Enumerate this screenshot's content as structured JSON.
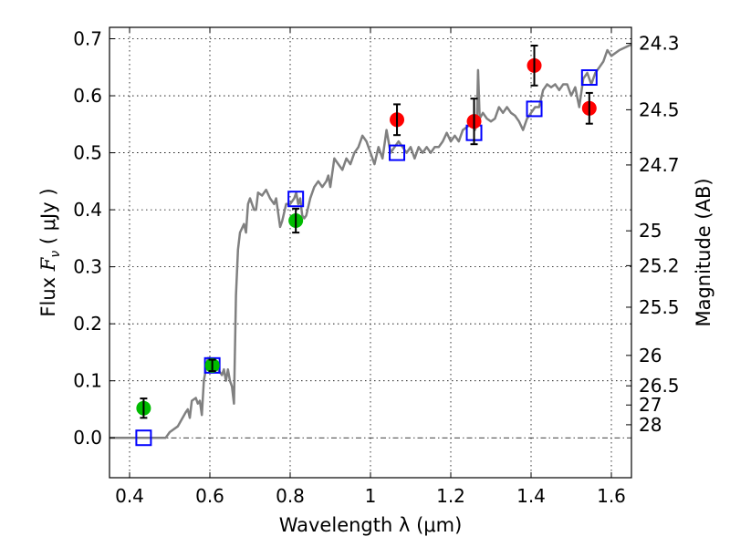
{
  "chart_data": {
    "type": "scatter",
    "xlabel": "Wavelength  λ (μm)",
    "ylabel": "Flux  Fν  ( μJy )",
    "ylabel_parts": {
      "pre": "Flux  ",
      "var": "F",
      "sub": "ν",
      "post": "  ( μJy )"
    },
    "y2label": "Magnitude (AB)",
    "xlim": [
      0.35,
      1.65
    ],
    "ylim": [
      -0.07,
      0.72
    ],
    "grid": true,
    "xticks": [
      0.4,
      0.6,
      0.8,
      1.0,
      1.2,
      1.4,
      1.6
    ],
    "xtick_labels": [
      "0.4",
      "0.6",
      "0.8",
      "1",
      "1.2",
      "1.4",
      "1.6"
    ],
    "yticks": [
      0.0,
      0.1,
      0.2,
      0.3,
      0.4,
      0.5,
      0.6,
      0.7
    ],
    "ytick_labels": [
      "0.0",
      "0.1",
      "0.2",
      "0.3",
      "0.4",
      "0.5",
      "0.6",
      "0.7"
    ],
    "y2ticks": [
      24.3,
      24.5,
      24.7,
      25,
      25.2,
      25.5,
      26,
      26.5,
      27,
      28
    ],
    "y2tick_labels": [
      "24.3",
      "24.5",
      "24.7",
      "25",
      "25.2",
      "25.5",
      "26",
      "26.5",
      "27",
      "28"
    ],
    "colors": {
      "spectrum": "#808080",
      "green": "#00bb00",
      "red": "#ff0000",
      "model": "#0000ff",
      "zero": "#000000"
    },
    "series": [
      {
        "name": "spectrum",
        "kind": "line",
        "x": [
          0.35,
          0.49,
          0.5,
          0.52,
          0.54,
          0.545,
          0.55,
          0.555,
          0.565,
          0.57,
          0.575,
          0.58,
          0.585,
          0.595,
          0.6,
          0.605,
          0.62,
          0.63,
          0.635,
          0.64,
          0.645,
          0.65,
          0.655,
          0.66,
          0.665,
          0.67,
          0.675,
          0.685,
          0.69,
          0.695,
          0.7,
          0.71,
          0.715,
          0.72,
          0.73,
          0.74,
          0.75,
          0.76,
          0.765,
          0.775,
          0.78,
          0.79,
          0.8,
          0.81,
          0.815,
          0.82,
          0.825,
          0.83,
          0.835,
          0.84,
          0.85,
          0.86,
          0.87,
          0.88,
          0.89,
          0.895,
          0.9,
          0.91,
          0.92,
          0.93,
          0.94,
          0.95,
          0.96,
          0.97,
          0.98,
          0.99,
          1.0,
          1.01,
          1.02,
          1.03,
          1.04,
          1.05,
          1.06,
          1.07,
          1.08,
          1.09,
          1.1,
          1.11,
          1.12,
          1.13,
          1.14,
          1.15,
          1.16,
          1.17,
          1.18,
          1.19,
          1.2,
          1.21,
          1.22,
          1.23,
          1.24,
          1.25,
          1.26,
          1.265,
          1.268,
          1.272,
          1.28,
          1.29,
          1.3,
          1.31,
          1.32,
          1.33,
          1.34,
          1.35,
          1.36,
          1.37,
          1.38,
          1.39,
          1.4,
          1.41,
          1.42,
          1.43,
          1.44,
          1.45,
          1.46,
          1.47,
          1.48,
          1.49,
          1.5,
          1.51,
          1.52,
          1.53,
          1.54,
          1.55,
          1.56,
          1.57,
          1.58,
          1.59,
          1.6,
          1.62,
          1.65
        ],
        "y": [
          0,
          0,
          0.01,
          0.02,
          0.045,
          0.05,
          0.035,
          0.065,
          0.07,
          0.06,
          0.065,
          0.04,
          0.1,
          0.14,
          0.14,
          0.12,
          0.12,
          0.11,
          0.12,
          0.1,
          0.12,
          0.1,
          0.09,
          0.06,
          0.25,
          0.33,
          0.36,
          0.375,
          0.36,
          0.41,
          0.42,
          0.4,
          0.4,
          0.43,
          0.425,
          0.435,
          0.42,
          0.41,
          0.42,
          0.37,
          0.38,
          0.41,
          0.41,
          0.42,
          0.43,
          0.41,
          0.42,
          0.39,
          0.385,
          0.39,
          0.42,
          0.44,
          0.45,
          0.44,
          0.45,
          0.46,
          0.44,
          0.49,
          0.48,
          0.47,
          0.49,
          0.48,
          0.5,
          0.51,
          0.53,
          0.52,
          0.5,
          0.48,
          0.51,
          0.49,
          0.54,
          0.5,
          0.51,
          0.52,
          0.51,
          0.5,
          0.51,
          0.49,
          0.51,
          0.5,
          0.51,
          0.5,
          0.51,
          0.51,
          0.52,
          0.535,
          0.52,
          0.53,
          0.52,
          0.54,
          0.545,
          0.55,
          0.54,
          0.55,
          0.645,
          0.56,
          0.57,
          0.56,
          0.555,
          0.56,
          0.58,
          0.57,
          0.58,
          0.57,
          0.565,
          0.555,
          0.54,
          0.56,
          0.57,
          0.58,
          0.58,
          0.61,
          0.62,
          0.615,
          0.62,
          0.61,
          0.62,
          0.62,
          0.6,
          0.615,
          0.58,
          0.63,
          0.64,
          0.62,
          0.64,
          0.65,
          0.66,
          0.68,
          0.67,
          0.68,
          0.69
        ]
      },
      {
        "name": "green-photometry",
        "kind": "errorbar",
        "color_key": "green",
        "x": [
          0.435,
          0.606,
          0.814
        ],
        "y": [
          0.052,
          0.127,
          0.381
        ],
        "yerr": [
          0.017,
          0.01,
          0.021
        ]
      },
      {
        "name": "red-photometry",
        "kind": "errorbar",
        "color_key": "red",
        "x": [
          1.066,
          1.258,
          1.408,
          1.545
        ],
        "y": [
          0.558,
          0.555,
          0.653,
          0.578
        ],
        "yerr": [
          0.027,
          0.04,
          0.035,
          0.027
        ]
      },
      {
        "name": "model-photometry",
        "kind": "square",
        "color_key": "model",
        "x": [
          0.435,
          0.606,
          0.814,
          1.066,
          1.258,
          1.408,
          1.545
        ],
        "y": [
          0.0,
          0.127,
          0.419,
          0.5,
          0.535,
          0.577,
          0.632
        ]
      }
    ]
  }
}
